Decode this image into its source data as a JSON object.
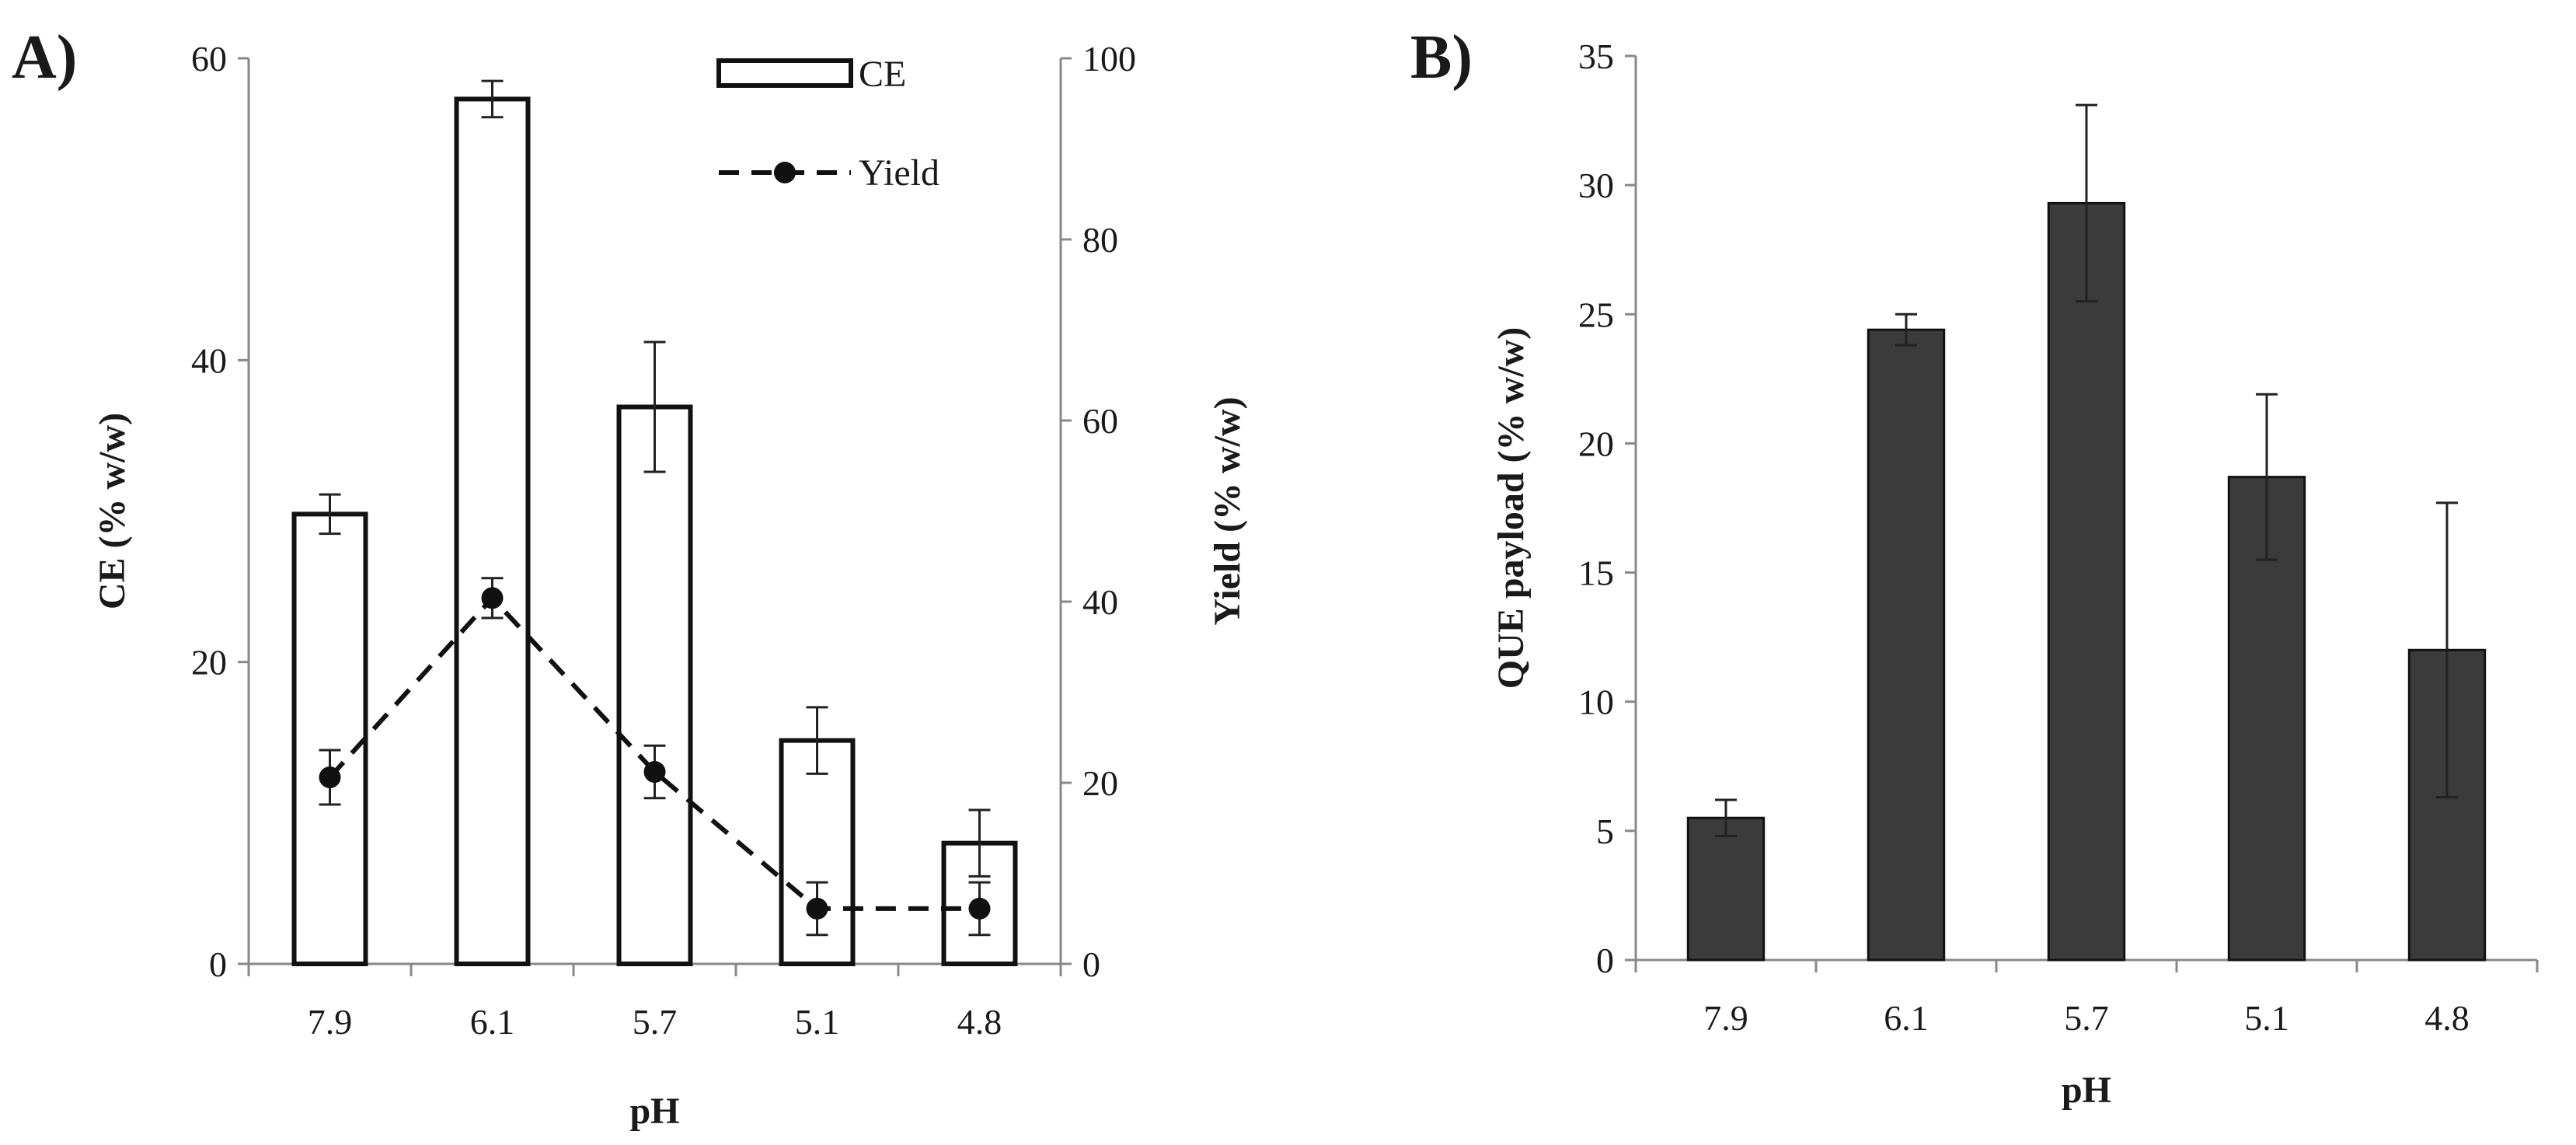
{
  "chart_data": [
    {
      "panel": "A)",
      "type": "bar",
      "categories": [
        "7.9",
        "6.1",
        "5.7",
        "5.1",
        "4.8"
      ],
      "xlabel": "pH",
      "ylabel": "CE (% w/w)",
      "ylim": [
        0,
        60
      ],
      "yticks": [
        0,
        20,
        40,
        60
      ],
      "y2label": "Yield (% w/w)",
      "y2lim": [
        0,
        100
      ],
      "y2ticks": [
        0,
        20,
        40,
        60,
        80,
        100
      ],
      "grid": false,
      "legend_position": "top-center",
      "series": [
        {
          "name": "CE",
          "kind": "bar",
          "axis": "left",
          "fill": "#ffffff",
          "stroke": "#111111",
          "values": [
            29.8,
            57.3,
            36.9,
            14.8,
            8.0
          ],
          "errors": [
            1.3,
            1.2,
            4.3,
            2.2,
            2.2
          ]
        },
        {
          "name": "Yield",
          "kind": "line",
          "axis": "right",
          "line_style": "dashed",
          "marker": "circle",
          "color": "#111111",
          "values": [
            20.6,
            40.4,
            21.2,
            6.1,
            6.1
          ],
          "errors": [
            3.0,
            2.2,
            2.9,
            2.9,
            2.9
          ]
        }
      ]
    },
    {
      "panel": "B)",
      "type": "bar",
      "categories": [
        "7.9",
        "6.1",
        "5.7",
        "5.1",
        "4.8"
      ],
      "xlabel": "pH",
      "ylabel": "QUE payload (% w/w)",
      "ylim": [
        0,
        35
      ],
      "yticks": [
        0,
        5,
        10,
        15,
        20,
        25,
        30,
        35
      ],
      "grid": false,
      "series": [
        {
          "name": "QUE payload",
          "kind": "bar",
          "axis": "left",
          "fill": "#3b3b3b",
          "stroke": "#111111",
          "values": [
            5.5,
            24.4,
            29.3,
            18.7,
            12.0
          ],
          "errors": [
            0.7,
            0.6,
            3.8,
            3.2,
            5.7
          ]
        }
      ]
    }
  ]
}
